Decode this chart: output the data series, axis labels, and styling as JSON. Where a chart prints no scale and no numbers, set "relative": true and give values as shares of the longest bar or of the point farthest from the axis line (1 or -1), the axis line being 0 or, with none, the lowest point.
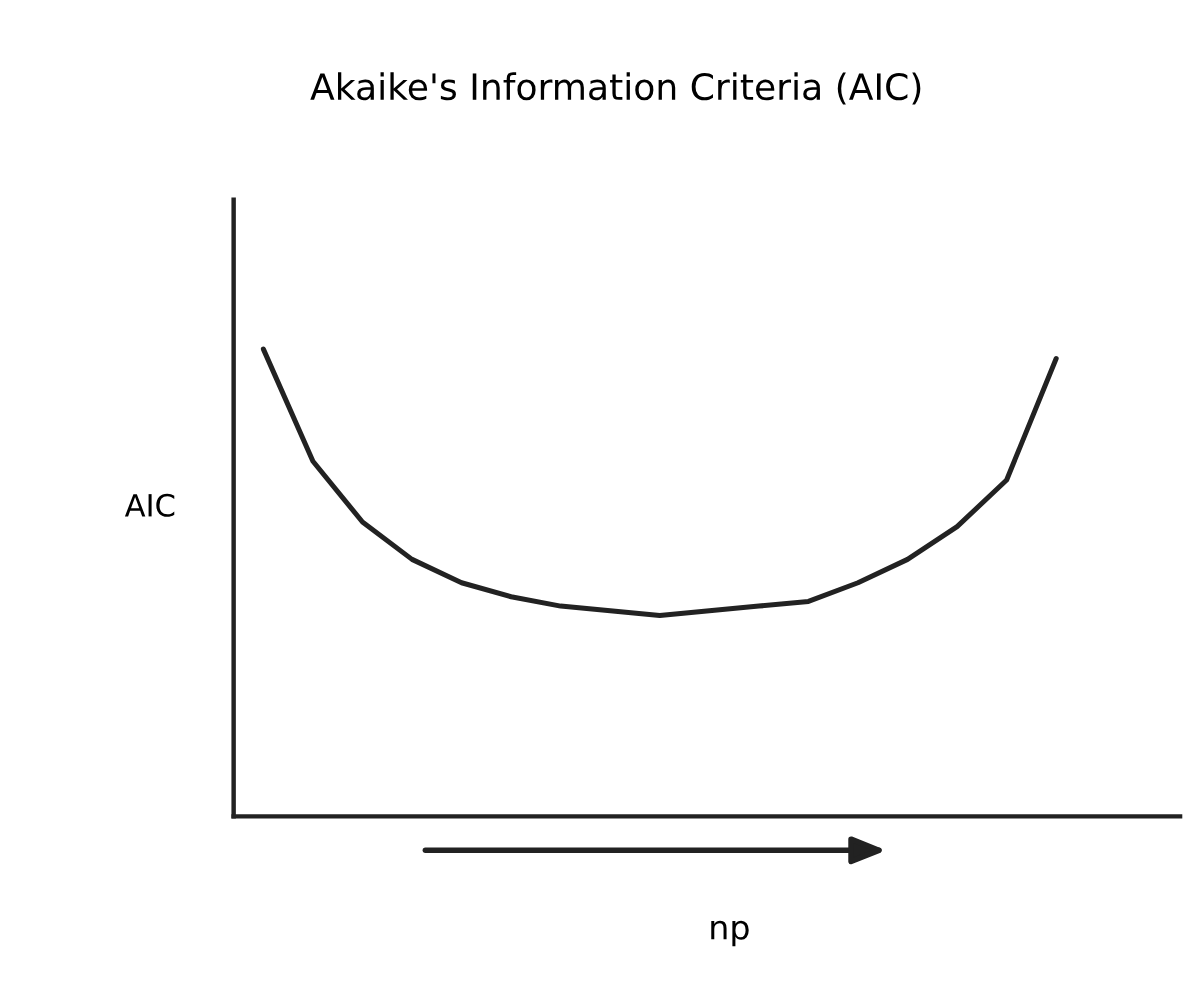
{
  "chart_data": {
    "type": "line",
    "title": "Akaike's Information Criteria (AIC)",
    "xlabel": "np",
    "ylabel": "AIC",
    "relative": true,
    "grid": false,
    "legend": false,
    "categories": [
      null,
      null,
      null,
      null,
      null,
      null,
      null,
      null,
      null,
      null,
      null,
      null,
      null,
      null,
      null,
      null,
      null
    ],
    "series": [
      {
        "color": "#222222",
        "values": [
          1,
          0.76,
          0.63,
          0.55,
          0.5,
          0.47,
          0.45,
          0.44,
          0.43,
          0.44,
          0.45,
          0.46,
          0.5,
          0.55,
          0.62,
          0.72,
          0.98
        ]
      }
    ]
  }
}
